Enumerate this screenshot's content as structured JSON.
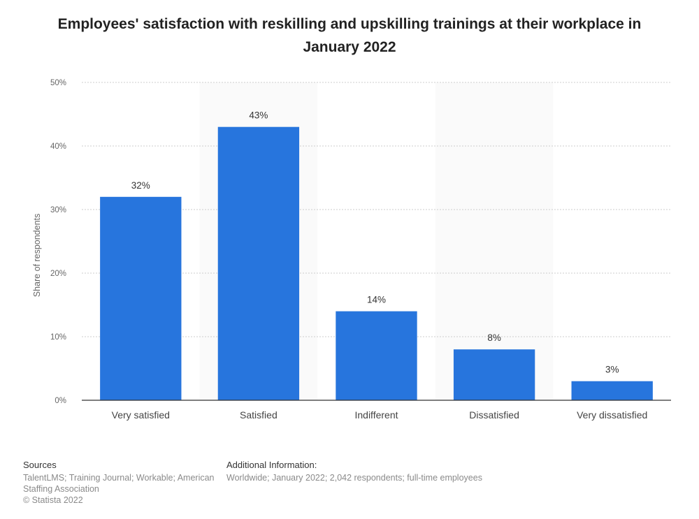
{
  "title": "Employees' satisfaction with reskilling and upskilling trainings at their workplace in January 2022",
  "chart_data": {
    "type": "bar",
    "categories": [
      "Very satisfied",
      "Satisfied",
      "Indifferent",
      "Dissatisfied",
      "Very dissatisfied"
    ],
    "values": [
      32,
      43,
      14,
      8,
      3
    ],
    "value_labels": [
      "32%",
      "43%",
      "14%",
      "8%",
      "3%"
    ],
    "ylabel": "Share of respondents",
    "xlabel": "",
    "ylim": [
      0,
      50
    ],
    "yticks": [
      0,
      10,
      20,
      30,
      40,
      50
    ],
    "ytick_labels": [
      "0%",
      "10%",
      "20%",
      "30%",
      "40%",
      "50%"
    ],
    "grid": true,
    "bar_color": "#2775dd"
  },
  "footer": {
    "sources_heading": "Sources",
    "sources_lines": [
      "TalentLMS; Training Journal; Workable; American",
      "Staffing Association",
      "© Statista 2022"
    ],
    "additional_heading": "Additional Information:",
    "additional_text": "Worldwide; January 2022; 2,042 respondents; full-time employees"
  }
}
